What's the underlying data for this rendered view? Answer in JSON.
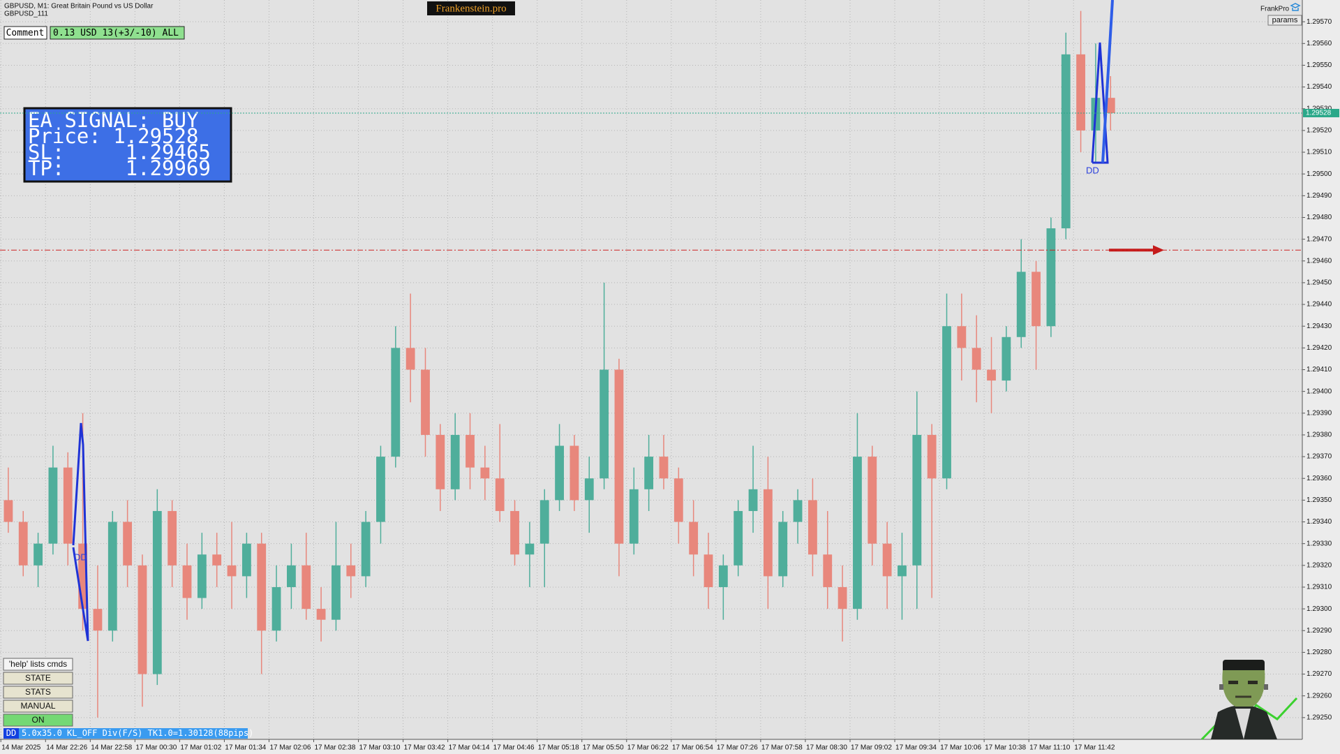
{
  "chart_data": {
    "type": "candlestick",
    "symbol_line": "GBPUSD, M1:  Great Britain Pound vs US Dollar",
    "account_line": "GBPUSD_111",
    "brand": "Frankenstein.pro",
    "brand_right": "FrankPro",
    "params_button": "params",
    "comment_label": "Comment",
    "comment_value": "0.13 USD 13(+3/-10) ALL",
    "signal": [
      "EA SIGNAL: BUY",
      "Price: 1.29528",
      "SL:     1.29465",
      "TP:     1.29969"
    ],
    "pattern_labels": [
      "DD",
      "DD"
    ],
    "buttons": [
      "'help' lists cmds",
      "STATE",
      "STATS",
      "MANUAL",
      "ON"
    ],
    "status_tag": "DD",
    "status_text": "5.0x35.0 KL_OFF Div(F/S) TK1.0=1.30128(88pips)",
    "time_labels": [
      "14 Mar 2025",
      "14 Mar 22:26",
      "14 Mar 22:58",
      "17 Mar 00:30",
      "17 Mar 01:02",
      "17 Mar 01:34",
      "17 Mar 02:06",
      "17 Mar 02:38",
      "17 Mar 03:10",
      "17 Mar 03:42",
      "17 Mar 04:14",
      "17 Mar 04:46",
      "17 Mar 05:18",
      "17 Mar 05:50",
      "17 Mar 06:22",
      "17 Mar 06:54",
      "17 Mar 07:26",
      "17 Mar 07:58",
      "17 Mar 08:30",
      "17 Mar 09:02",
      "17 Mar 09:34",
      "17 Mar 10:06",
      "17 Mar 10:38",
      "17 Mar 11:10",
      "17 Mar 11:42"
    ],
    "ylim": [
      1.2924,
      1.2958
    ],
    "yticks": [
      {
        "value": 1.2925,
        "label": "1.29250"
      },
      {
        "value": 1.2926,
        "label": "1.29260"
      },
      {
        "value": 1.2927,
        "label": "1.29270"
      },
      {
        "value": 1.2928,
        "label": "1.29280"
      },
      {
        "value": 1.2929,
        "label": "1.29290"
      },
      {
        "value": 1.293,
        "label": "1.29300"
      },
      {
        "value": 1.2931,
        "label": "1.29310"
      },
      {
        "value": 1.2932,
        "label": "1.29320"
      },
      {
        "value": 1.2933,
        "label": "1.29330"
      },
      {
        "value": 1.2934,
        "label": "1.29340"
      },
      {
        "value": 1.2935,
        "label": "1.29350"
      },
      {
        "value": 1.2936,
        "label": "1.29360"
      },
      {
        "value": 1.2937,
        "label": "1.29370"
      },
      {
        "value": 1.2938,
        "label": "1.29380"
      },
      {
        "value": 1.2939,
        "label": "1.29390"
      },
      {
        "value": 1.294,
        "label": "1.29400"
      },
      {
        "value": 1.2941,
        "label": "1.29410"
      },
      {
        "value": 1.2942,
        "label": "1.29420"
      },
      {
        "value": 1.2943,
        "label": "1.29430"
      },
      {
        "value": 1.2944,
        "label": "1.29440"
      },
      {
        "value": 1.2945,
        "label": "1.29450"
      },
      {
        "value": 1.2946,
        "label": "1.29460"
      },
      {
        "value": 1.2947,
        "label": "1.29470"
      },
      {
        "value": 1.2948,
        "label": "1.29480"
      },
      {
        "value": 1.2949,
        "label": "1.29490"
      },
      {
        "value": 1.295,
        "label": "1.29500"
      },
      {
        "value": 1.2951,
        "label": "1.29510"
      },
      {
        "value": 1.2952,
        "label": "1.29520"
      },
      {
        "value": 1.2953,
        "label": "1.29530"
      },
      {
        "value": 1.2954,
        "label": "1.29540"
      },
      {
        "value": 1.2955,
        "label": "1.29550"
      },
      {
        "value": 1.2956,
        "label": "1.29560"
      },
      {
        "value": 1.2957,
        "label": "1.29570"
      }
    ],
    "grid": true,
    "up_color": "#4fae9b",
    "down_color": "#e8877c",
    "price_line": {
      "value": 1.29528,
      "label": "1.29528",
      "color": "#2aa889"
    },
    "sl_line": {
      "value": 1.29465,
      "color": "#cc2222"
    },
    "candles": {
      "open": [
        1.2935,
        1.2934,
        1.2932,
        1.2933,
        1.29365,
        1.2933,
        1.293,
        1.2929,
        1.2934,
        1.2932,
        1.2927,
        1.29345,
        1.2932,
        1.29305,
        1.29325,
        1.2932,
        1.29315,
        1.2933,
        1.2929,
        1.2931,
        1.2932,
        1.293,
        1.29295,
        1.2932,
        1.29315,
        1.2934,
        1.2937,
        1.2942,
        1.2941,
        1.2938,
        1.29355,
        1.2938,
        1.29365,
        1.2936,
        1.29345,
        1.29325,
        1.2933,
        1.2935,
        1.29375,
        1.2935,
        1.2936,
        1.2941,
        1.2933,
        1.29355,
        1.2937,
        1.2936,
        1.2934,
        1.29325,
        1.2931,
        1.2932,
        1.29345,
        1.29355,
        1.29315,
        1.2934,
        1.2935,
        1.29325,
        1.2931,
        1.293,
        1.2937,
        1.2933,
        1.29315,
        1.2932,
        1.2938,
        1.2936,
        1.2943,
        1.2942,
        1.2941,
        1.29405,
        1.29425,
        1.29455,
        1.2943,
        1.29475,
        1.29555,
        1.2952,
        1.29535
      ],
      "high": [
        1.29365,
        1.29345,
        1.29335,
        1.29375,
        1.29372,
        1.2939,
        1.2932,
        1.29345,
        1.2935,
        1.29325,
        1.29355,
        1.2935,
        1.2933,
        1.29335,
        1.29335,
        1.2934,
        1.29335,
        1.29335,
        1.2932,
        1.2933,
        1.29335,
        1.2931,
        1.2934,
        1.2933,
        1.29345,
        1.29375,
        1.2943,
        1.29445,
        1.2942,
        1.29385,
        1.2939,
        1.2939,
        1.29375,
        1.29385,
        1.2935,
        1.2934,
        1.29355,
        1.29385,
        1.2938,
        1.2937,
        1.2945,
        1.29415,
        1.29365,
        1.2938,
        1.2938,
        1.29365,
        1.2935,
        1.29335,
        1.29325,
        1.2935,
        1.29375,
        1.2937,
        1.29345,
        1.29355,
        1.2936,
        1.29345,
        1.2932,
        1.2939,
        1.29375,
        1.2934,
        1.29335,
        1.294,
        1.29385,
        1.29445,
        1.29445,
        1.29435,
        1.29425,
        1.2943,
        1.2947,
        1.2946,
        1.2948,
        1.29565,
        1.29575,
        1.2956,
        1.29545
      ],
      "low": [
        1.29335,
        1.29315,
        1.2931,
        1.29325,
        1.2932,
        1.2929,
        1.2925,
        1.29285,
        1.2931,
        1.29255,
        1.29265,
        1.2931,
        1.29295,
        1.293,
        1.2931,
        1.293,
        1.29305,
        1.2927,
        1.29285,
        1.293,
        1.29295,
        1.29285,
        1.2929,
        1.29305,
        1.2931,
        1.2933,
        1.29365,
        1.29395,
        1.2937,
        1.29345,
        1.2935,
        1.29355,
        1.2935,
        1.2934,
        1.2932,
        1.2931,
        1.2931,
        1.29345,
        1.29345,
        1.29335,
        1.29355,
        1.29315,
        1.29325,
        1.29345,
        1.29355,
        1.2933,
        1.29315,
        1.293,
        1.29295,
        1.29315,
        1.29335,
        1.293,
        1.2931,
        1.2933,
        1.29315,
        1.293,
        1.29285,
        1.29295,
        1.2932,
        1.293,
        1.29295,
        1.293,
        1.29305,
        1.29355,
        1.29405,
        1.29395,
        1.2939,
        1.294,
        1.2942,
        1.2941,
        1.29425,
        1.2947,
        1.2951,
        1.29505,
        1.2952
      ],
      "close": [
        1.2934,
        1.2932,
        1.2933,
        1.29365,
        1.2933,
        1.293,
        1.2929,
        1.2934,
        1.2932,
        1.2927,
        1.29345,
        1.2932,
        1.29305,
        1.29325,
        1.2932,
        1.29315,
        1.2933,
        1.2929,
        1.2931,
        1.2932,
        1.293,
        1.29295,
        1.2932,
        1.29315,
        1.2934,
        1.2937,
        1.2942,
        1.2941,
        1.2938,
        1.29355,
        1.2938,
        1.29365,
        1.2936,
        1.29345,
        1.29325,
        1.2933,
        1.2935,
        1.29375,
        1.2935,
        1.2936,
        1.2941,
        1.2933,
        1.29355,
        1.2937,
        1.2936,
        1.2934,
        1.29325,
        1.2931,
        1.2932,
        1.29345,
        1.29355,
        1.29315,
        1.2934,
        1.2935,
        1.29325,
        1.2931,
        1.293,
        1.2937,
        1.2933,
        1.29315,
        1.2932,
        1.2938,
        1.2936,
        1.2943,
        1.2942,
        1.2941,
        1.29405,
        1.29425,
        1.29455,
        1.2943,
        1.29475,
        1.29555,
        1.2952,
        1.29535,
        1.29528
      ]
    }
  }
}
